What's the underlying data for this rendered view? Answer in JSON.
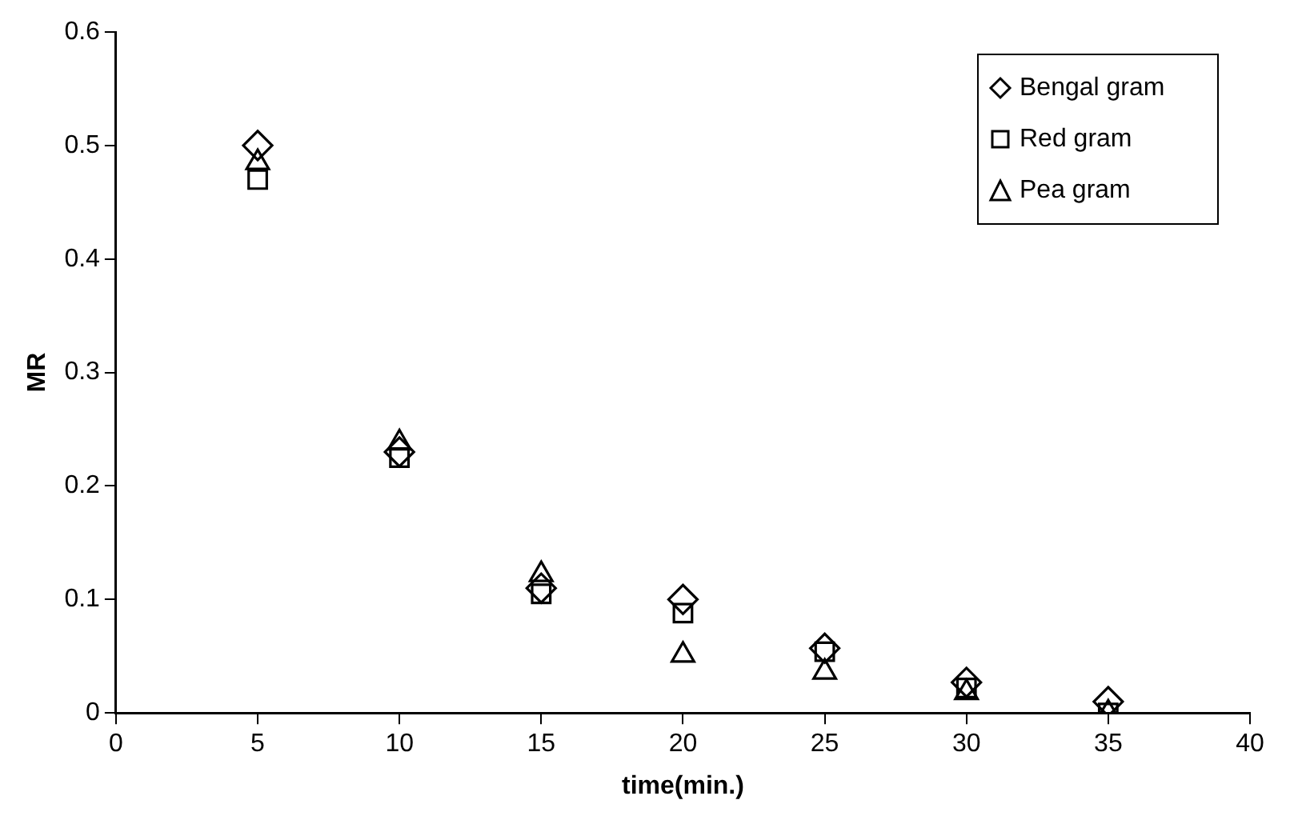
{
  "chart_data": {
    "type": "scatter",
    "xlabel": "time(min.)",
    "ylabel": "MR",
    "x": [
      5,
      10,
      15,
      20,
      25,
      30,
      35
    ],
    "series": [
      {
        "name": "Bengal gram",
        "color": "#000000",
        "marker": "diamond",
        "values": [
          0.5,
          0.23,
          0.11,
          0.1,
          0.057,
          0.027,
          0.01
        ]
      },
      {
        "name": "Red gram",
        "color": "#000000",
        "marker": "square",
        "values": [
          0.47,
          0.225,
          0.105,
          0.088,
          0.054,
          0.022,
          0.0
        ]
      },
      {
        "name": "Pea gram",
        "color": "#000000",
        "marker": "triangle",
        "values": [
          0.485,
          0.238,
          0.122,
          0.051,
          0.036,
          0.018,
          0.0
        ]
      }
    ],
    "xlim": [
      0,
      40
    ],
    "xticks": [
      0,
      5,
      10,
      15,
      20,
      25,
      30,
      35,
      40
    ],
    "ylim": [
      0,
      0.6
    ],
    "yticks": [
      0,
      0.1,
      0.2,
      0.3,
      0.4,
      0.5,
      0.6
    ],
    "grid": false,
    "legend": "top right"
  }
}
